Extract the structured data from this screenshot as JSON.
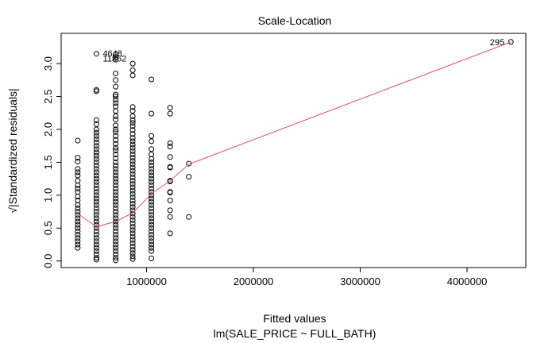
{
  "chart_data": {
    "type": "scatter",
    "title": "Scale-Location",
    "xlabel": "Fitted values",
    "subtitle": "lm(SALE_PRICE ~ FULL_BATH)",
    "ylabel": "√|Standardized residuals|",
    "xlim": [
      200000,
      4550000
    ],
    "ylim": [
      -0.1,
      3.46
    ],
    "x_ticks": [
      1000000,
      2000000,
      3000000,
      4000000
    ],
    "x_tick_labels": [
      "1000000",
      "2000000",
      "3000000",
      "4000000"
    ],
    "y_ticks": [
      0.0,
      0.5,
      1.0,
      1.5,
      2.0,
      2.5,
      3.0
    ],
    "y_tick_labels": [
      "0.0",
      "0.5",
      "1.0",
      "1.5",
      "2.0",
      "2.5",
      "3.0"
    ],
    "grid": false,
    "point_marker": "open-circle",
    "colors": {
      "points": "#000000",
      "smoother": "#df536b"
    },
    "points_by_group": [
      {
        "x": 355000,
        "y": [
          1.83,
          1.57,
          1.51,
          1.4,
          1.35,
          1.3,
          1.22,
          1.15,
          1.1,
          1.05,
          0.98,
          0.92,
          0.85,
          0.8,
          0.75,
          0.7,
          0.65,
          0.6,
          0.55,
          0.5,
          0.45,
          0.4,
          0.35,
          0.3,
          0.25,
          0.2
        ]
      },
      {
        "x": 530000,
        "y": [
          3.15,
          2.6,
          2.58,
          2.14,
          2.08,
          2.0,
          1.95,
          1.9,
          1.85,
          1.8,
          1.75,
          1.7,
          1.65,
          1.6,
          1.55,
          1.5,
          1.45,
          1.4,
          1.35,
          1.3,
          1.25,
          1.2,
          1.15,
          1.1,
          1.05,
          1.0,
          0.95,
          0.9,
          0.85,
          0.8,
          0.75,
          0.7,
          0.65,
          0.6,
          0.55,
          0.5,
          0.45,
          0.4,
          0.35,
          0.3,
          0.25,
          0.2,
          0.15,
          0.1,
          0.05,
          0.02
        ]
      },
      {
        "x": 710000,
        "y": [
          3.14,
          3.1,
          3.06,
          2.85,
          2.75,
          2.65,
          2.53,
          2.5,
          2.45,
          2.4,
          2.35,
          2.28,
          2.2,
          2.15,
          2.06,
          2.0,
          1.96,
          1.9,
          1.84,
          1.78,
          1.72,
          1.68,
          1.62,
          1.56,
          1.5,
          1.45,
          1.4,
          1.35,
          1.3,
          1.25,
          1.2,
          1.15,
          1.1,
          1.05,
          1.0,
          0.95,
          0.9,
          0.85,
          0.8,
          0.75,
          0.7,
          0.65,
          0.6,
          0.55,
          0.5,
          0.45,
          0.4,
          0.35,
          0.3,
          0.25,
          0.2,
          0.15,
          0.1,
          0.05,
          0.01
        ]
      },
      {
        "x": 870000,
        "y": [
          3.0,
          2.9,
          2.82,
          2.34,
          2.28,
          2.2,
          2.14,
          2.1,
          2.05,
          1.99,
          1.93,
          1.87,
          1.82,
          1.77,
          1.72,
          1.67,
          1.62,
          1.57,
          1.52,
          1.47,
          1.42,
          1.37,
          1.32,
          1.27,
          1.22,
          1.17,
          1.12,
          1.07,
          1.02,
          0.97,
          0.92,
          0.87,
          0.82,
          0.77,
          0.72,
          0.67,
          0.62,
          0.57,
          0.52,
          0.47,
          0.42,
          0.37,
          0.32,
          0.27,
          0.22,
          0.17,
          0.12,
          0.07,
          0.03
        ]
      },
      {
        "x": 1045000,
        "y": [
          2.76,
          2.24,
          1.9,
          1.82,
          1.7,
          1.62,
          1.55,
          1.5,
          1.45,
          1.4,
          1.35,
          1.3,
          1.25,
          1.2,
          1.15,
          1.1,
          1.05,
          1.0,
          0.95,
          0.9,
          0.85,
          0.8,
          0.75,
          0.7,
          0.65,
          0.6,
          0.55,
          0.5,
          0.45,
          0.4,
          0.35,
          0.3,
          0.25,
          0.2,
          0.15,
          0.04
        ]
      },
      {
        "x": 1220000,
        "y": [
          2.33,
          2.24,
          1.79,
          1.74,
          1.58,
          1.43,
          1.42,
          1.22,
          1.21,
          1.05,
          1.04,
          0.92,
          0.77,
          0.67,
          0.42
        ]
      },
      {
        "x": 1395000,
        "y": [
          1.48,
          1.28,
          0.67
        ]
      },
      {
        "x": 4410000,
        "y": [
          3.33
        ]
      }
    ],
    "smoother": {
      "x": [
        355000,
        530000,
        710000,
        870000,
        1045000,
        1220000,
        1395000,
        4410000
      ],
      "y": [
        0.72,
        0.52,
        0.6,
        0.73,
        1.02,
        1.22,
        1.47,
        3.33
      ]
    },
    "annotations": [
      {
        "text": "4648",
        "x": 590000,
        "y": 3.16,
        "anchor": "start"
      },
      {
        "text": "11862",
        "x": 590000,
        "y": 3.08,
        "anchor": "start"
      },
      {
        "text": "295",
        "x": 4350000,
        "y": 3.33,
        "anchor": "end"
      }
    ]
  }
}
